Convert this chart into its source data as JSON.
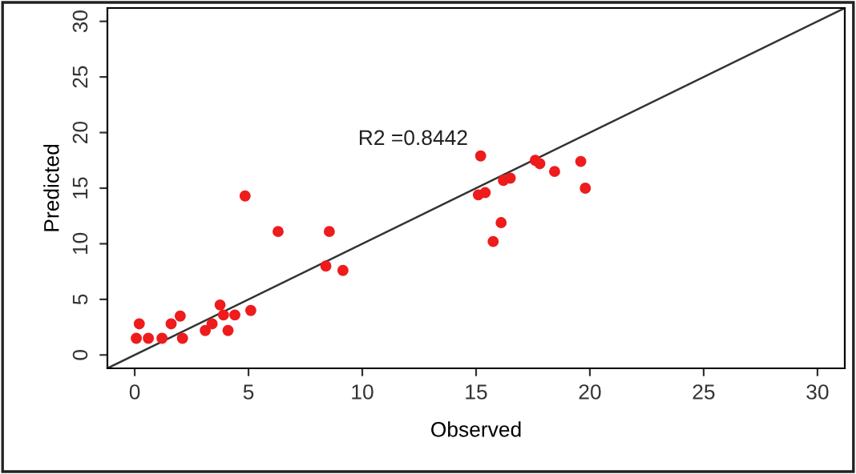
{
  "chart_data": {
    "type": "scatter",
    "xlabel": "Observed",
    "ylabel": "Predicted",
    "annotations": [
      "R2 =0.8442"
    ],
    "xlim": [
      -1.2,
      31.2
    ],
    "ylim": [
      -1.2,
      31.2
    ],
    "xticks": [
      0,
      5,
      10,
      15,
      20,
      25,
      30
    ],
    "yticks": [
      0,
      5,
      10,
      15,
      20,
      25,
      30
    ],
    "grid": false,
    "legend": false,
    "marker": "circle",
    "series": [
      {
        "color": "#ee1c1c",
        "x": [
          0.07,
          0.2,
          0.6,
          1.2,
          1.6,
          2.0,
          2.1,
          3.1,
          3.4,
          3.75,
          3.9,
          4.1,
          4.4,
          4.85,
          5.1,
          6.3,
          8.4,
          8.55,
          9.15,
          15.2,
          15.1,
          15.4,
          15.75,
          16.1,
          16.2,
          16.5,
          17.6,
          17.8,
          18.45,
          19.6,
          19.8
        ],
        "values": [
          1.5,
          2.8,
          1.5,
          1.5,
          2.8,
          3.5,
          1.5,
          2.2,
          2.8,
          4.5,
          3.6,
          2.2,
          3.6,
          14.3,
          4.0,
          11.1,
          8.0,
          11.1,
          7.6,
          17.9,
          14.4,
          14.6,
          10.2,
          11.9,
          15.7,
          15.9,
          17.5,
          17.2,
          16.5,
          17.4,
          15.0
        ]
      },
      {
        "type": "line",
        "color": "#333333",
        "x": [
          -1.2,
          31.2
        ],
        "values": [
          -1.2,
          31.2
        ],
        "marker": "none"
      }
    ]
  }
}
